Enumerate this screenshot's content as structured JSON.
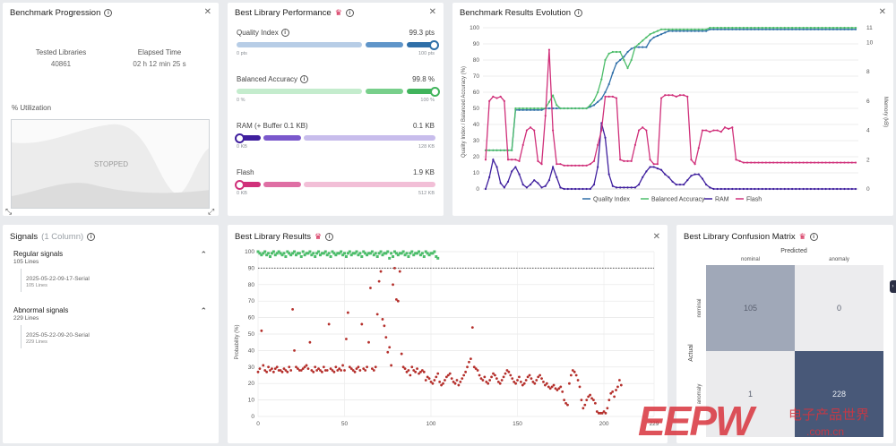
{
  "progression": {
    "title": "Benchmark Progression",
    "tested_label": "Tested Libraries",
    "tested_value": "40861",
    "elapsed_label": "Elapsed Time",
    "elapsed_value": "02 h 12 min 25 s",
    "util_label": "% Utilization",
    "status": "STOPPED"
  },
  "performance": {
    "title": "Best Library Performance",
    "metrics": [
      {
        "label": "Quality Index",
        "value": "99.3 pts",
        "min": "0 pts",
        "max": "100 pts",
        "fraction": 0.993,
        "color": "#2f6fa8",
        "light": "#b7cde6",
        "mid": "#5f95c9",
        "has_info": true
      },
      {
        "label": "Balanced Accuracy",
        "value": "99.8 %",
        "min": "0 %",
        "max": "100 %",
        "fraction": 0.998,
        "color": "#41b45c",
        "light": "#c4eccd",
        "mid": "#78cf8b",
        "has_info": true
      },
      {
        "label": "RAM (+ Buffer 0.1 KB)",
        "value": "0.1 KB",
        "min": "0 KB",
        "max": "128 KB",
        "fraction": 0.001,
        "color": "#3f1f9e",
        "light": "#c8bdec",
        "mid": "#7a58cc",
        "has_info": false
      },
      {
        "label": "Flash",
        "value": "1.9 KB",
        "min": "0 KB",
        "max": "512 KB",
        "fraction": 0.004,
        "color": "#d0307a",
        "light": "#f2bfd7",
        "mid": "#df6fa4",
        "has_info": false
      }
    ]
  },
  "evolution": {
    "title": "Benchmark Results Evolution",
    "left_axis_label": "Quality Index / Balanced Accuracy (%)",
    "right_axis_label": "Memory (kB)",
    "legend": [
      "Quality Index",
      "Balanced Accuracy",
      "RAM",
      "Flash"
    ],
    "colors": [
      "#2f6fa8",
      "#4cbd6a",
      "#3f1f9e",
      "#d0307a"
    ]
  },
  "signals": {
    "title": "Signals",
    "subtitle": "(1 Column)",
    "groups": [
      {
        "name": "Regular signals",
        "count": "105 Lines",
        "file": "2025-05-22-09-17-Serial",
        "file_count": "105 Lines"
      },
      {
        "name": "Abnormal signals",
        "count": "229 Lines",
        "file": "2025-05-22-09-20-Serial",
        "file_count": "229 Lines"
      }
    ]
  },
  "results": {
    "title": "Best Library Results",
    "y_label": "Probability (%)",
    "threshold": 90,
    "normal_color": "#4cbd6a",
    "abnormal_color": "#b5302c"
  },
  "confusion": {
    "title": "Best Library Confusion Matrix",
    "predicted_label": "Predicted",
    "actual_label": "Actual",
    "classes": [
      "nominal",
      "anomaly"
    ],
    "matrix": [
      [
        105,
        0
      ],
      [
        1,
        228
      ]
    ]
  },
  "chart_data": [
    {
      "type": "line",
      "title": "Benchmark Results Evolution",
      "ylabel": "Quality Index / Balanced Accuracy (%)",
      "y2label": "Memory (kB)",
      "ylim": [
        0,
        100
      ],
      "y2lim": [
        0,
        11
      ],
      "yticks": [
        0,
        10,
        20,
        30,
        40,
        50,
        60,
        70,
        80,
        90,
        100
      ],
      "y2ticks": [
        0,
        2,
        4,
        6,
        8,
        10,
        11
      ],
      "grid": true,
      "legend_position": "bottom",
      "series": [
        {
          "name": "Quality Index",
          "axis": "left",
          "color": "#2f6fa8",
          "values": [
            24,
            24,
            24,
            24,
            24,
            24,
            24,
            24,
            49,
            49,
            49,
            49,
            49,
            49,
            49,
            49,
            50,
            50,
            50,
            50,
            50,
            50,
            50,
            50,
            50,
            50,
            50,
            50,
            51,
            52,
            54,
            56,
            60,
            65,
            72,
            78,
            80,
            82,
            85,
            87,
            88,
            88,
            88,
            88,
            92,
            94,
            95,
            96,
            97,
            98,
            98,
            98,
            98,
            98,
            98,
            98,
            98,
            98,
            98,
            98,
            99,
            99,
            99,
            99,
            99,
            99,
            99,
            99,
            99,
            99,
            99,
            99,
            99,
            99,
            99,
            99,
            99,
            99,
            99,
            99,
            99,
            99,
            99,
            99,
            99,
            99,
            99,
            99,
            99,
            99,
            99,
            99,
            99,
            99,
            99,
            99,
            99,
            99,
            99,
            99
          ]
        },
        {
          "name": "Balanced Accuracy",
          "axis": "left",
          "color": "#4cbd6a",
          "values": [
            24,
            24,
            24,
            24,
            24,
            24,
            24,
            24,
            50,
            50,
            50,
            50,
            50,
            50,
            50,
            50,
            50,
            54,
            58,
            52,
            50,
            50,
            50,
            50,
            50,
            50,
            50,
            50,
            52,
            55,
            60,
            68,
            80,
            84,
            85,
            85,
            85,
            80,
            75,
            80,
            88,
            90,
            92,
            94,
            96,
            97,
            98,
            99,
            99,
            99,
            99,
            99,
            99,
            99,
            99,
            99,
            99,
            99,
            99,
            99,
            100,
            100,
            100,
            100,
            100,
            100,
            100,
            100,
            100,
            100,
            100,
            100,
            100,
            100,
            100,
            100,
            100,
            100,
            100,
            100,
            100,
            100,
            100,
            100,
            100,
            100,
            100,
            100,
            100,
            100,
            100,
            100,
            100,
            100,
            100,
            100,
            100,
            100,
            100,
            100
          ]
        },
        {
          "name": "RAM",
          "axis": "right",
          "color": "#3f1f9e",
          "values": [
            0,
            0.8,
            2.0,
            1.5,
            0.4,
            0.1,
            0.5,
            1.2,
            1.5,
            1.0,
            0.3,
            0.1,
            0.3,
            0.6,
            0.4,
            0.1,
            0.2,
            0.6,
            1.5,
            0.8,
            0.1,
            0,
            0,
            0,
            0,
            0,
            0,
            0,
            0,
            0.3,
            1.5,
            4.5,
            3.5,
            1.0,
            0.2,
            0.1,
            0.1,
            0.1,
            0.1,
            0.1,
            0.1,
            0.3,
            0.8,
            1.2,
            1.5,
            1.5,
            1.4,
            1.3,
            1.0,
            0.8,
            0.5,
            0.3,
            0.3,
            0.3,
            0.6,
            0.9,
            1.0,
            1.0,
            0.7,
            0.3,
            0.1,
            0,
            0,
            0,
            0,
            0,
            0,
            0,
            0,
            0,
            0,
            0,
            0,
            0,
            0,
            0,
            0,
            0,
            0,
            0,
            0,
            0,
            0,
            0,
            0,
            0,
            0,
            0,
            0,
            0,
            0,
            0,
            0,
            0,
            0,
            0,
            0,
            0,
            0,
            0
          ]
        },
        {
          "name": "Flash",
          "axis": "right",
          "color": "#d0307a",
          "values": [
            2.0,
            6.0,
            6.3,
            6.2,
            6.3,
            6.0,
            2.0,
            2.0,
            2.0,
            1.9,
            3.0,
            4.0,
            4.2,
            4.0,
            1.9,
            1.7,
            5.0,
            9.5,
            4.0,
            1.7,
            1.7,
            1.6,
            1.6,
            1.6,
            1.6,
            1.6,
            1.6,
            1.6,
            1.7,
            1.9,
            3.0,
            4.0,
            6.3,
            6.3,
            6.3,
            6.2,
            2.0,
            1.9,
            1.9,
            1.9,
            3.0,
            4.0,
            4.2,
            4.0,
            2.0,
            1.7,
            1.7,
            6.2,
            6.4,
            6.4,
            6.4,
            6.3,
            6.4,
            6.4,
            6.3,
            2.0,
            1.7,
            2.8,
            4.0,
            4.0,
            3.9,
            4.0,
            4.0,
            3.9,
            4.2,
            4.1,
            4.2,
            2.0,
            1.9,
            1.8,
            1.8,
            1.8,
            1.8,
            1.8,
            1.8,
            1.8,
            1.8,
            1.8,
            1.8,
            1.8,
            1.8,
            1.8,
            1.8,
            1.8,
            1.8,
            1.8,
            1.8,
            1.8,
            1.8,
            1.8,
            1.8,
            1.8,
            1.8,
            1.8,
            1.8,
            1.8,
            1.8,
            1.8,
            1.8,
            1.8
          ]
        }
      ]
    },
    {
      "type": "scatter",
      "title": "Best Library Results",
      "ylabel": "Probability (%)",
      "xlim": [
        0,
        229
      ],
      "ylim": [
        0,
        100
      ],
      "xticks": [
        0,
        50,
        100,
        150,
        200,
        229
      ],
      "yticks": [
        0,
        10,
        20,
        30,
        40,
        50,
        60,
        70,
        80,
        90,
        100
      ],
      "threshold": 90,
      "series": [
        {
          "name": "Regular signals",
          "color": "#4cbd6a",
          "y": [
            100,
            99,
            98,
            99,
            100,
            98,
            99,
            97,
            99,
            100,
            98,
            99,
            100,
            99,
            98,
            99,
            97,
            100,
            99,
            98,
            99,
            100,
            98,
            99,
            99,
            97,
            100,
            98,
            99,
            99,
            100,
            98,
            99,
            97,
            99,
            100,
            98,
            99,
            99,
            100,
            98,
            99,
            97,
            100,
            99,
            98,
            99,
            99,
            100,
            98,
            99,
            97,
            99,
            100,
            98,
            99,
            99,
            100,
            98,
            99,
            97,
            100,
            99,
            98,
            99,
            99,
            100,
            98,
            99,
            97,
            99,
            100,
            98,
            99,
            99,
            100,
            96,
            99,
            97,
            100,
            99,
            98,
            99,
            99,
            100,
            98,
            99,
            97,
            99,
            100,
            98,
            99,
            99,
            100,
            98,
            99,
            97,
            100,
            99,
            98,
            99,
            99,
            100,
            97,
            96
          ]
        },
        {
          "name": "Abnormal signals",
          "color": "#b5302c",
          "y": [
            27,
            29,
            52,
            31,
            28,
            27,
            30,
            28,
            29,
            27,
            29,
            30,
            28,
            28,
            27,
            29,
            28,
            27,
            30,
            28,
            65,
            40,
            30,
            29,
            28,
            28,
            29,
            30,
            31,
            29,
            45,
            28,
            27,
            30,
            28,
            29,
            28,
            27,
            30,
            28,
            28,
            56,
            29,
            28,
            27,
            30,
            28,
            29,
            28,
            31,
            28,
            47,
            63,
            30,
            29,
            28,
            27,
            29,
            30,
            28,
            56,
            29,
            28,
            30,
            45,
            78,
            29,
            28,
            30,
            62,
            82,
            88,
            59,
            55,
            48,
            39,
            42,
            31,
            80,
            90,
            71,
            70,
            88,
            38,
            30,
            29,
            27,
            28,
            25,
            30,
            28,
            27,
            29,
            26,
            27,
            28,
            27,
            22,
            24,
            23,
            21,
            20,
            22,
            24,
            26,
            21,
            19,
            20,
            22,
            24,
            25,
            26,
            23,
            21,
            20,
            22,
            19,
            21,
            23,
            25,
            27,
            30,
            33,
            35,
            54,
            30,
            29,
            28,
            25,
            23,
            22,
            24,
            21,
            20,
            22,
            24,
            26,
            25,
            23,
            21,
            20,
            22,
            24,
            26,
            28,
            27,
            25,
            23,
            21,
            20,
            22,
            24,
            21,
            19,
            20,
            22,
            24,
            25,
            23,
            21,
            20,
            22,
            24,
            25,
            23,
            21,
            19,
            20,
            18,
            17,
            18,
            19,
            17,
            16,
            17,
            18,
            15,
            10,
            8,
            7,
            20,
            25,
            28,
            27,
            25,
            22,
            18,
            10,
            5,
            7,
            10,
            12,
            13,
            11,
            10,
            8,
            3,
            2,
            2,
            2,
            3,
            2,
            5,
            10,
            14,
            15,
            12,
            16,
            18,
            22,
            19
          ]
        }
      ]
    },
    {
      "type": "heatmap",
      "title": "Best Library Confusion Matrix",
      "xlabel": "Predicted",
      "ylabel": "Actual",
      "x": [
        "nominal",
        "anomaly"
      ],
      "y": [
        "nominal",
        "anomaly"
      ],
      "values": [
        [
          105,
          0
        ],
        [
          1,
          228
        ]
      ]
    }
  ],
  "watermark": {
    "logo": "EEPW",
    "cn": "电子产品世界",
    "url": ".com.cn"
  }
}
